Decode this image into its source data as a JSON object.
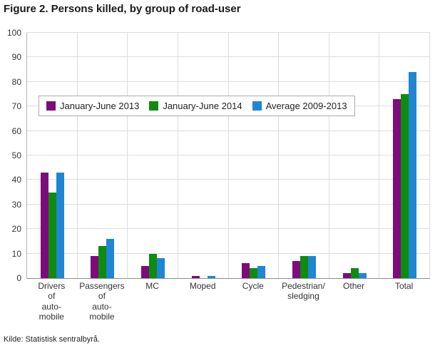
{
  "source": "Kilde: Statistisk sentralbyrå.",
  "chart_data": {
    "type": "bar",
    "title": "Figure 2. Persons killed, by group of road-user",
    "categories": [
      "Drivers\nof\nauto-\nmobile",
      "Passengers\nof\nauto-\nmobile",
      "MC",
      "Moped",
      "Cycle",
      "Pedestrian/\nsledging",
      "Other",
      "Total"
    ],
    "series": [
      {
        "name": "January-June 2013",
        "color": "#7d0b7d",
        "values": [
          43,
          9,
          5,
          1,
          6,
          7,
          2,
          73
        ]
      },
      {
        "name": "January-June 2014",
        "color": "#0e8c0e",
        "values": [
          35,
          13,
          10,
          0,
          4,
          9,
          4,
          75
        ]
      },
      {
        "name": "Average 2009-2013",
        "color": "#1e86d2",
        "values": [
          43,
          16,
          8,
          1,
          5,
          9,
          2,
          84
        ]
      }
    ],
    "ylim": [
      0,
      100
    ],
    "ytick_step": 10,
    "grid": true,
    "legend_position": "inside-top-left"
  }
}
